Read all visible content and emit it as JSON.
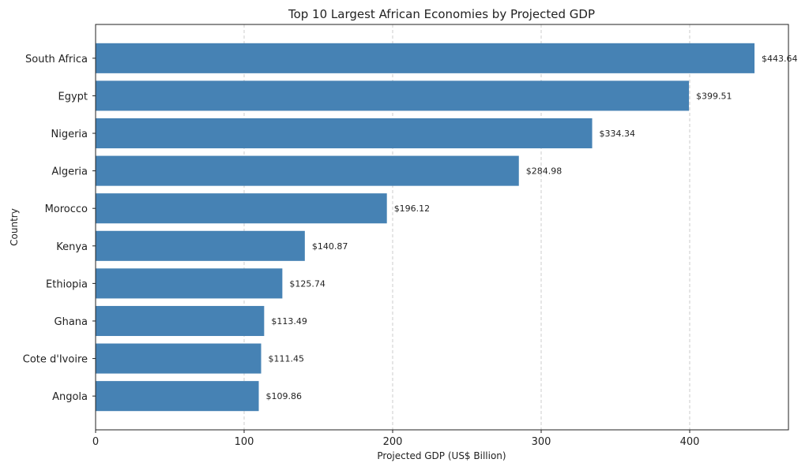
{
  "chart_data": {
    "type": "bar",
    "orientation": "horizontal",
    "title": "Top 10 Largest African Economies by Projected GDP",
    "xlabel": "Projected GDP (US$ Billion)",
    "ylabel": "Country",
    "categories": [
      "South Africa",
      "Egypt",
      "Nigeria",
      "Algeria",
      "Morocco",
      "Kenya",
      "Ethiopia",
      "Ghana",
      "Cote d'Ivoire",
      "Angola"
    ],
    "values": [
      443.64,
      399.51,
      334.34,
      284.98,
      196.12,
      140.87,
      125.74,
      113.49,
      111.45,
      109.86
    ],
    "data_labels": [
      "$443.64",
      "$399.51",
      "$334.34",
      "$284.98",
      "$196.12",
      "$140.87",
      "$125.74",
      "$113.49",
      "$111.45",
      "$109.86"
    ],
    "xlim": [
      0,
      466.5
    ],
    "xticks": [
      0,
      100,
      200,
      300,
      400
    ],
    "xtick_labels": [
      "0",
      "100",
      "200",
      "300",
      "400"
    ],
    "grid": {
      "x": true,
      "y": false,
      "style": "dashed"
    },
    "bar_color": "#4682b4"
  }
}
